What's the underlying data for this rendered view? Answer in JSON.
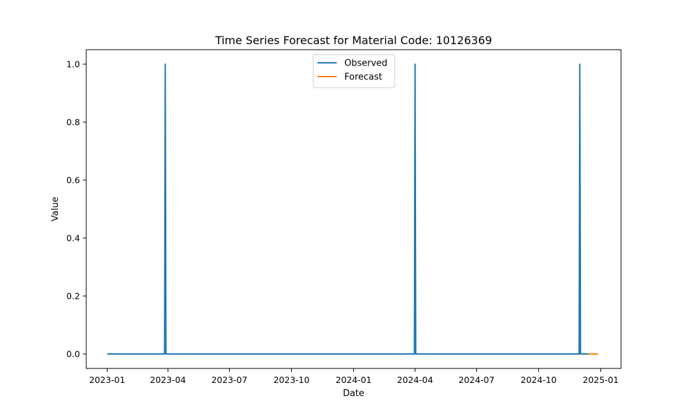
{
  "chart_data": {
    "type": "line",
    "title": "Time Series Forecast for Material Code: 10126369",
    "xlabel": "Date",
    "ylabel": "Value",
    "x_axis_type": "date",
    "xlim": [
      "2022-12-01",
      "2025-01-31"
    ],
    "ylim": [
      -0.05,
      1.05
    ],
    "x_ticks": [
      "2023-01",
      "2023-04",
      "2023-07",
      "2023-10",
      "2024-01",
      "2024-04",
      "2024-07",
      "2024-10",
      "2025-01"
    ],
    "y_ticks": [
      "0.0",
      "0.2",
      "0.4",
      "0.6",
      "0.8",
      "1.0"
    ],
    "grid": false,
    "legend_position": "upper center",
    "series": [
      {
        "name": "Observed",
        "color": "#1f77b4",
        "points": [
          {
            "x": "2023-01-01",
            "y": 0
          },
          {
            "x": "2023-03-27",
            "y": 0
          },
          {
            "x": "2023-03-28",
            "y": 1
          },
          {
            "x": "2023-03-29",
            "y": 0
          },
          {
            "x": "2024-03-31",
            "y": 0
          },
          {
            "x": "2024-04-01",
            "y": 1
          },
          {
            "x": "2024-04-02",
            "y": 0
          },
          {
            "x": "2024-11-30",
            "y": 0
          },
          {
            "x": "2024-12-01",
            "y": 1
          },
          {
            "x": "2024-12-02",
            "y": 0
          },
          {
            "x": "2024-12-14",
            "y": 0
          }
        ]
      },
      {
        "name": "Forecast",
        "color": "#ff7f0e",
        "points": [
          {
            "x": "2024-12-14",
            "y": 0
          },
          {
            "x": "2024-12-28",
            "y": 0
          }
        ]
      }
    ]
  }
}
